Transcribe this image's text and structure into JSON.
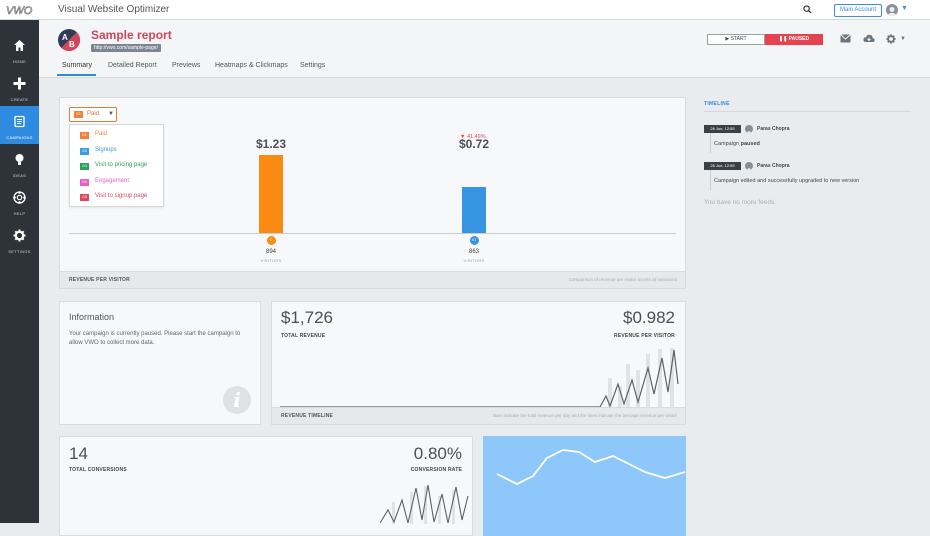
{
  "app": {
    "title": "Visual Website Optimizer",
    "main_account": "Main Account"
  },
  "sidebar": {
    "items": [
      {
        "label": "HOME",
        "icon": "home-icon"
      },
      {
        "label": "CREATE",
        "icon": "plus-icon"
      },
      {
        "label": "CAMPAIGNS",
        "icon": "campaigns-icon",
        "active": true
      },
      {
        "label": "IDEAS",
        "icon": "bulb-icon"
      },
      {
        "label": "HELP",
        "icon": "lifebuoy-icon"
      },
      {
        "label": "SETTINGS",
        "icon": "gear-icon"
      }
    ]
  },
  "header": {
    "badge": "AB",
    "title": "Sample report",
    "url": "http://vwo.com/sample-page/",
    "start_label": "START",
    "paused_label": "PAUSED",
    "tabs": [
      "Summary",
      "Detailed Report",
      "Previews",
      "Heatmaps & Clickmaps",
      "Settings"
    ],
    "active_tab": 0
  },
  "goals": {
    "selected": {
      "code": "G1",
      "label": "Paid"
    },
    "options": [
      {
        "code": "G1",
        "label": "Paid",
        "color": "#f0803a"
      },
      {
        "code": "G2",
        "label": "Signups",
        "color": "#3c9de0"
      },
      {
        "code": "G3",
        "label": "Visit to pricing page",
        "color": "#2ea35a"
      },
      {
        "code": "G4",
        "label": "Engagement",
        "color": "#e560c4"
      },
      {
        "code": "G5",
        "label": "Visit to signup page",
        "color": "#d94a5e"
      }
    ]
  },
  "revenue_per_visitor": {
    "footer_title": "REVENUE PER VISITOR",
    "footer_note": "Comparison of revenue per visitor across all variations",
    "variations": [
      {
        "badge": "C",
        "value_label": "$1.23",
        "value": 1.23,
        "visitors": "894",
        "visitors_label": "VISITORS",
        "color": "#fb8a12"
      },
      {
        "badge": "V1",
        "value_label": "$0.72",
        "value": 0.72,
        "visitors": "863",
        "visitors_label": "VISITORS",
        "color": "#3794e0",
        "delta": "▼ 41.49%"
      }
    ]
  },
  "information": {
    "title": "Information",
    "text": "Your campaign is currently paused. Please start the campaign to allow VWO to collect more data."
  },
  "revenue": {
    "total_revenue": "$1,726",
    "total_revenue_label": "TOTAL REVENUE",
    "rpv": "$0.982",
    "rpv_label": "REVENUE PER VISITOR",
    "footer_title": "REVENUE TIMELINE",
    "footer_note": "Bars indicate the total revenue per day and the lines indicate the average revenue per visitor"
  },
  "conversions": {
    "total": "14",
    "total_label": "TOTAL CONVERSIONS",
    "rate": "0.80%",
    "rate_label": "CONVERSION RATE"
  },
  "timeline": {
    "title": "TIMELINE",
    "entries": [
      {
        "date": "26 Jun, 12:55",
        "user": "Paras Chopra",
        "text_pre": "Campaign ",
        "text_bold": "paused",
        "text_post": ""
      },
      {
        "date": "26 Jun, 12:55",
        "user": "Paras Chopra",
        "text_pre": "Campaign edited and successfully upgraded to new version",
        "text_bold": "",
        "text_post": ""
      }
    ],
    "no_more": "You have no more feeds."
  }
}
